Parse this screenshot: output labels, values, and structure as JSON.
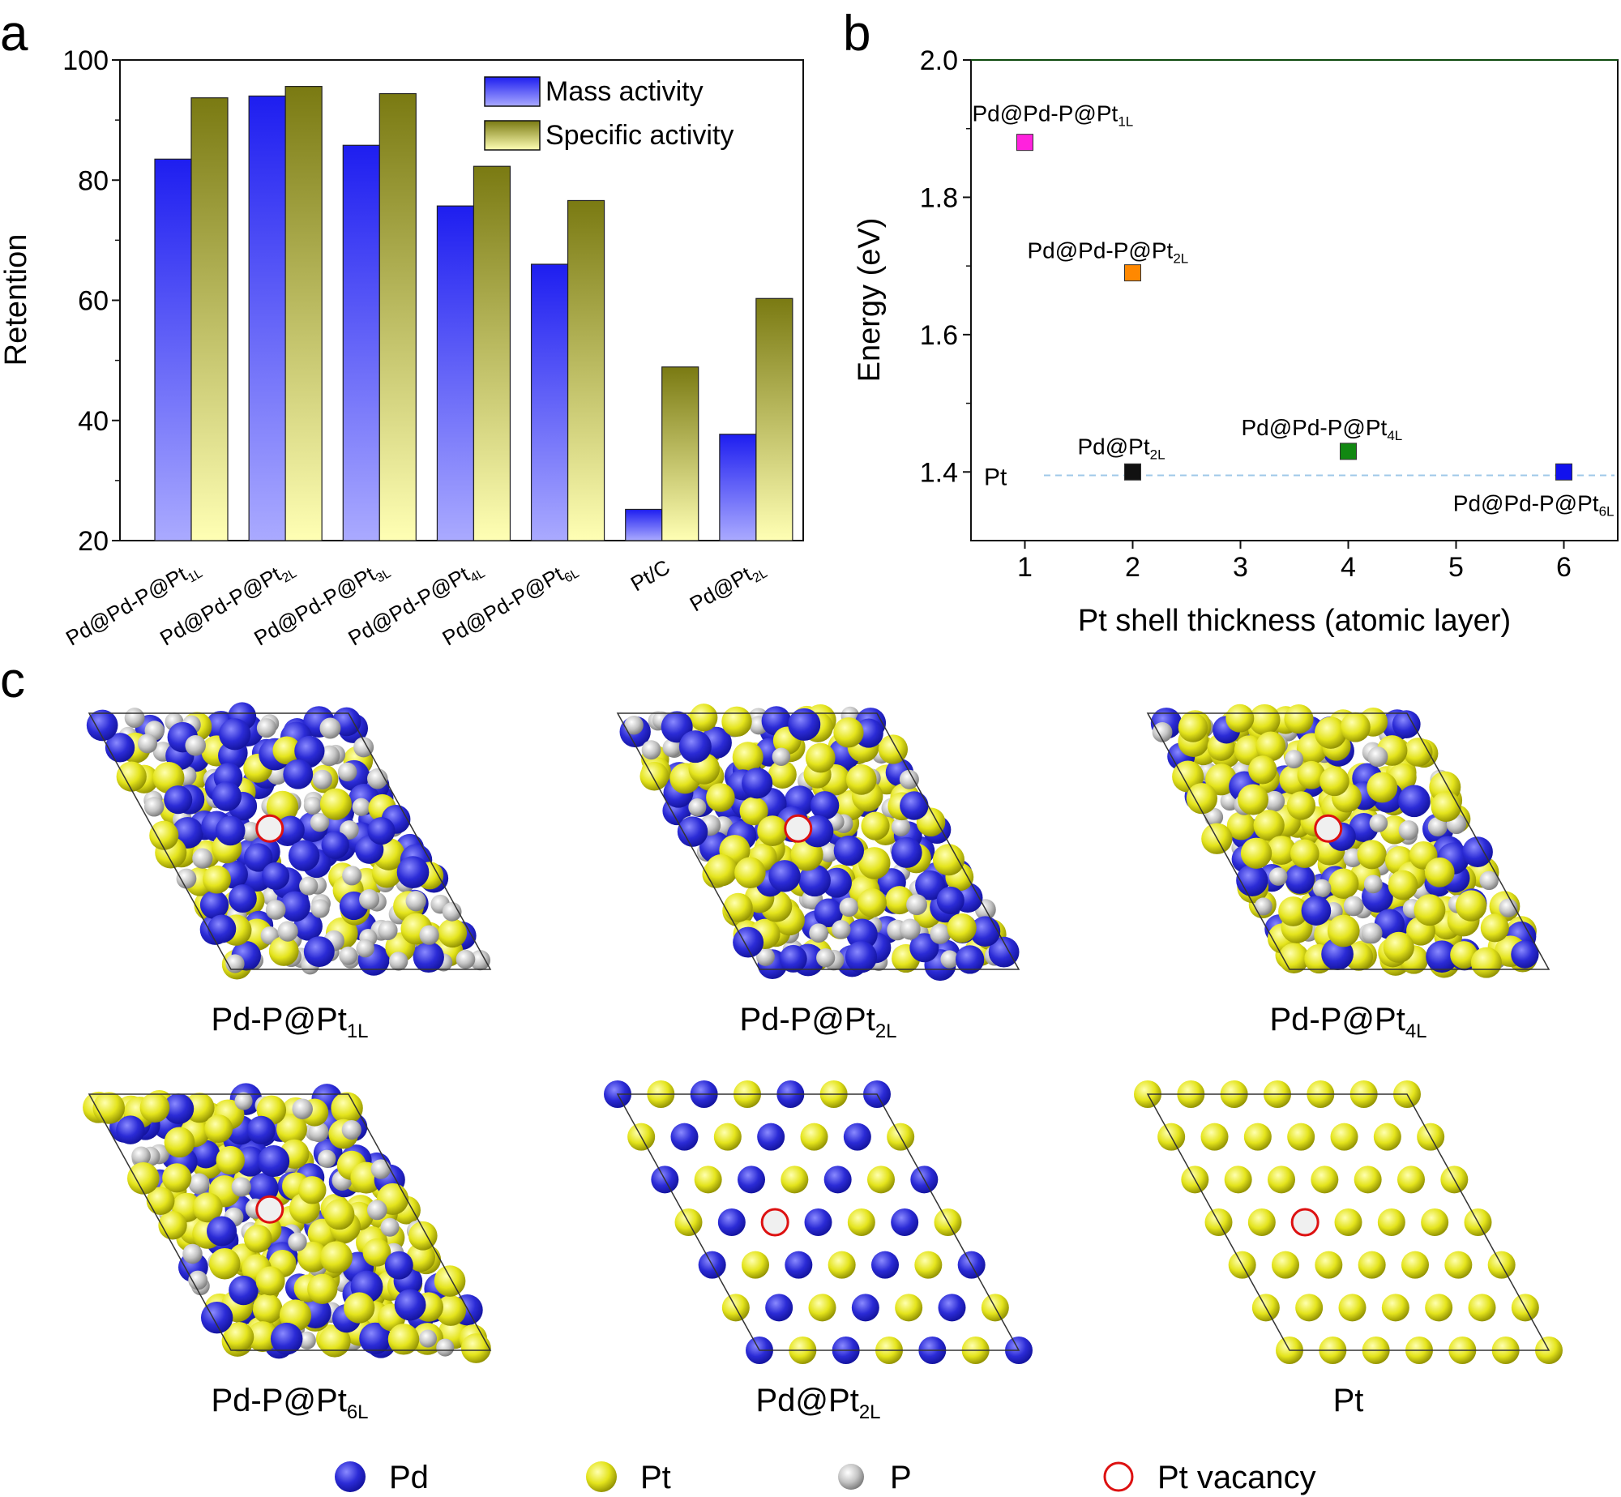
{
  "panel_labels": {
    "a": "a",
    "b": "b",
    "c": "c"
  },
  "colors": {
    "pd": "#2b2bd6",
    "pd_dark": "#12129a",
    "pd_light": "#8a8aff",
    "pt": "#e4e41c",
    "pt_dark": "#8c8c00",
    "pt_light": "#ffffb0",
    "p": "#c4c4c4",
    "p_dark": "#777777",
    "p_light": "#ffffff",
    "vacancy_ring": "#dd1111",
    "vacancy_fill": "#f0f0f0",
    "mass_top": "#1e1ef0",
    "mass_bottom": "#aaaaff",
    "spec_top": "#7a7a12",
    "spec_bottom": "#ffffb4",
    "ref_line": "#9fc8e8"
  },
  "chart_data": [
    {
      "id": "a",
      "type": "bar",
      "ylabel": "Retention",
      "xlabel": "",
      "ylim": [
        20,
        100
      ],
      "yticks": [
        "20",
        "40",
        "60",
        "80",
        "100"
      ],
      "categories": [
        {
          "base": "Pd@Pd-P@Pt",
          "sub": "1L"
        },
        {
          "base": "Pd@Pd-P@Pt",
          "sub": "2L"
        },
        {
          "base": "Pd@Pd-P@Pt",
          "sub": "3L"
        },
        {
          "base": "Pd@Pd-P@Pt",
          "sub": "4L"
        },
        {
          "base": "Pd@Pd-P@Pt",
          "sub": "6L"
        },
        {
          "base": "Pt/C",
          "sub": ""
        },
        {
          "base": "Pd@Pt",
          "sub": "2L"
        }
      ],
      "series": [
        {
          "name": "Mass activity",
          "values": [
            83.5,
            94.0,
            85.8,
            75.7,
            66.0,
            25.2,
            37.7
          ]
        },
        {
          "name": "Specific activity",
          "values": [
            93.7,
            95.6,
            94.4,
            82.3,
            76.6,
            48.9,
            60.3
          ]
        }
      ],
      "legend_position": "top-right"
    },
    {
      "id": "b",
      "type": "scatter",
      "xlabel": "Pt shell thickness (atomic layer)",
      "ylabel": "Energy (eV)",
      "xlim": [
        0.5,
        6.5
      ],
      "ylim": [
        1.3,
        2.0
      ],
      "xticks": [
        "1",
        "2",
        "3",
        "4",
        "5",
        "6"
      ],
      "yticks": [
        "1.4",
        "1.6",
        "1.8",
        "2.0"
      ],
      "reference": {
        "label": "Pt",
        "y": 1.395
      },
      "points": [
        {
          "label_base": "Pd@Pd-P@Pt",
          "label_sub": "1L",
          "x": 1,
          "y": 1.88,
          "color": "#ff22dd"
        },
        {
          "label_base": "Pd@Pd-P@Pt",
          "label_sub": "2L",
          "x": 2,
          "y": 1.69,
          "color": "#ff8800"
        },
        {
          "label_base": "Pd@Pt",
          "label_sub": "2L",
          "x": 2,
          "y": 1.4,
          "color": "#111111"
        },
        {
          "label_base": "Pd@Pd-P@Pt",
          "label_sub": "4L",
          "x": 4,
          "y": 1.43,
          "color": "#118811"
        },
        {
          "label_base": "Pd@Pd-P@Pt",
          "label_sub": "6L",
          "x": 6,
          "y": 1.4,
          "color": "#1111ee"
        }
      ]
    }
  ],
  "structures": [
    {
      "base": "Pd-P@Pt",
      "sub": "1L",
      "kind": "mixed",
      "pt": 0.2,
      "pd": 0.45
    },
    {
      "base": "Pd-P@Pt",
      "sub": "2L",
      "kind": "mixed",
      "pt": 0.38,
      "pd": 0.36
    },
    {
      "base": "Pd-P@Pt",
      "sub": "4L",
      "kind": "mixed",
      "pt": 0.5,
      "pd": 0.27
    },
    {
      "base": "Pd-P@Pt",
      "sub": "6L",
      "kind": "mixed",
      "pt": 0.55,
      "pd": 0.24
    },
    {
      "base": "Pd@Pt",
      "sub": "2L",
      "kind": "pdpt",
      "pt": 0,
      "pd": 0
    },
    {
      "base": "Pt",
      "sub": "",
      "kind": "pt",
      "pt": 0,
      "pd": 0
    }
  ],
  "legend_c": [
    {
      "label": "Pd",
      "kind": "pd"
    },
    {
      "label": "Pt",
      "kind": "pt"
    },
    {
      "label": "P",
      "kind": "p"
    },
    {
      "label": "Pt vacancy",
      "kind": "vacancy"
    }
  ]
}
